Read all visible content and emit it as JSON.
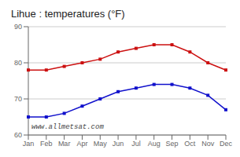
{
  "chart_data": {
    "type": "line",
    "title": "Lihue : temperatures (°F)",
    "categories": [
      "Jan",
      "Feb",
      "Mar",
      "Apr",
      "May",
      "Jun",
      "Jul",
      "Aug",
      "Sep",
      "Oct",
      "Nov",
      "Dec"
    ],
    "series": [
      {
        "color": "#cc1111",
        "marker": "square",
        "values": [
          78,
          78,
          79,
          80,
          81,
          83,
          84,
          85,
          85,
          83,
          80,
          78
        ]
      },
      {
        "color": "#1111cc",
        "marker": "square",
        "values": [
          65,
          65,
          66,
          68,
          70,
          72,
          73,
          74,
          74,
          73,
          71,
          67
        ]
      }
    ],
    "ylim": [
      60,
      90
    ],
    "yticks": [
      60,
      70,
      80,
      90
    ],
    "grid": true,
    "annotations": [
      "www.allmetsat.com"
    ]
  }
}
